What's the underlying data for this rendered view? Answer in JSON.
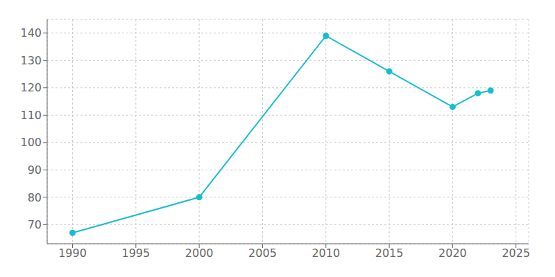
{
  "chart_data": {
    "type": "line",
    "x": [
      1990,
      2000,
      2010,
      2015,
      2020,
      2022,
      2023
    ],
    "values": [
      67,
      80,
      139,
      126,
      113,
      118,
      119
    ],
    "color": "#17becf",
    "marker": "circle",
    "xlim": [
      1988,
      2026
    ],
    "ylim": [
      63,
      145
    ],
    "xticks": [
      1990,
      1995,
      2000,
      2005,
      2010,
      2015,
      2020,
      2025
    ],
    "yticks": [
      70,
      80,
      90,
      100,
      110,
      120,
      130,
      140
    ],
    "grid": true
  }
}
